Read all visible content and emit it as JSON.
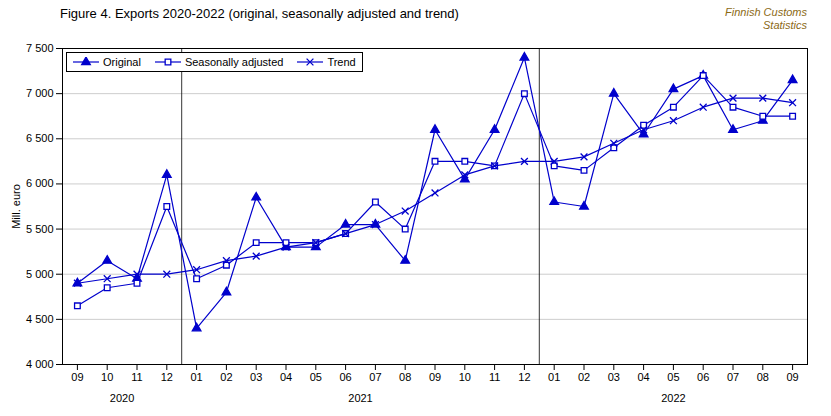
{
  "chart_data": {
    "type": "line",
    "title": "Figure 4. Exports 2020-2022 (original, seasonally adjusted and trend)",
    "watermark": {
      "text": "Finnish Customs\nStatistics",
      "color": "#8B6914"
    },
    "y_label": "Mill. euro",
    "categories": [
      "09",
      "10",
      "11",
      "12",
      "01",
      "02",
      "03",
      "04",
      "05",
      "06",
      "07",
      "08",
      "09",
      "10",
      "11",
      "12",
      "01",
      "02",
      "03",
      "04",
      "05",
      "06",
      "07",
      "08",
      "09"
    ],
    "series": [
      {
        "name": "Original",
        "color": "#0000CC",
        "marker": "triangle",
        "values": [
          4900,
          5150,
          4950,
          6100,
          4400,
          4800,
          5850,
          5300,
          5300,
          5550,
          5550,
          5150,
          6600,
          6050,
          6600,
          7400,
          5800,
          5750,
          7000,
          6550,
          7050,
          7200,
          6600,
          6700,
          7150
        ]
      },
      {
        "name": "Seasonally adjusted",
        "color": "#0000CC",
        "marker": "square-open",
        "values": [
          4650,
          4850,
          4900,
          5750,
          4950,
          5100,
          5350,
          5350,
          5350,
          5450,
          5800,
          5500,
          6250,
          6250,
          6200,
          7000,
          6200,
          6150,
          6400,
          6650,
          6850,
          7200,
          6850,
          6750,
          6750
        ]
      },
      {
        "name": "Trend",
        "color": "#0000CC",
        "marker": "x",
        "values": [
          4900,
          4950,
          5000,
          5000,
          5050,
          5150,
          5200,
          5300,
          5350,
          5450,
          5550,
          5700,
          5900,
          6100,
          6200,
          6250,
          6250,
          6300,
          6450,
          6600,
          6700,
          6850,
          6950,
          6950,
          6900
        ]
      }
    ],
    "annotations": [
      {
        "text": "2020",
        "x": 1.5
      },
      {
        "text": "2021",
        "x": 9.5
      },
      {
        "text": "2022",
        "x": 20.0
      }
    ],
    "separators": [
      3.5,
      15.5
    ],
    "ylim": [
      4000,
      7500
    ],
    "yticks": [
      {
        "value": 4000,
        "label": "4 000"
      },
      {
        "value": 4500,
        "label": "4 500"
      },
      {
        "value": 5000,
        "label": "5 000"
      },
      {
        "value": 5500,
        "label": "5 500"
      },
      {
        "value": 6000,
        "label": "6 000"
      },
      {
        "value": 6500,
        "label": "6 500"
      },
      {
        "value": 7000,
        "label": "7 000"
      },
      {
        "value": 7500,
        "label": "7 500"
      }
    ],
    "grid": true,
    "legend": "upper left"
  }
}
